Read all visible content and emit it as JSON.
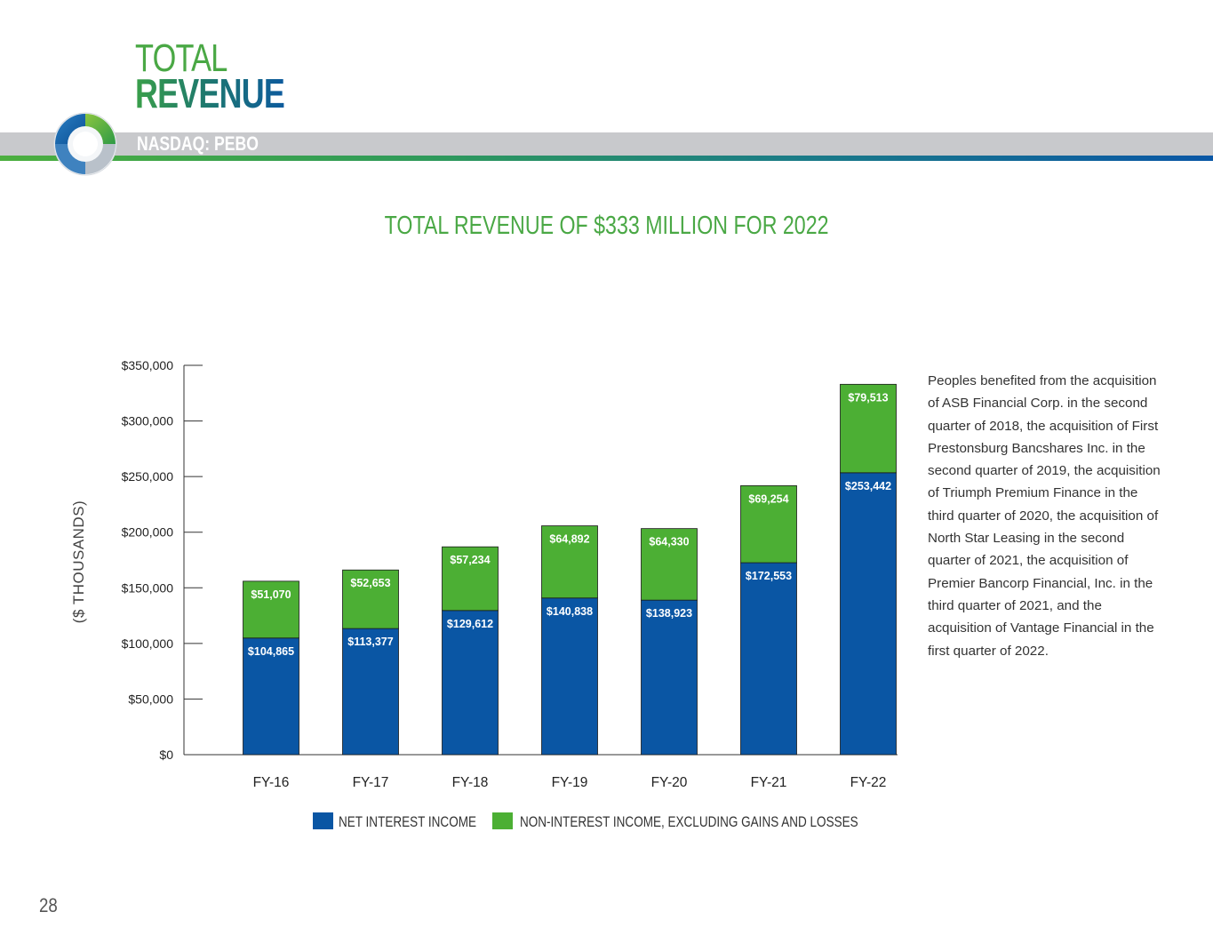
{
  "header": {
    "title_line1": "TOTAL",
    "title_line2": "REVENUE",
    "ticker": "NASDAQ: PEBO"
  },
  "page_number": "28",
  "side_text": "Peoples benefited from the acquisition of ASB Financial Corp. in the second quarter of 2018, the acquisition of First Prestonsburg Bancshares Inc. in the second quarter of 2019, the acquisition of Triumph Premium Finance in the third quarter of 2020, the acquisition of North Star Leasing in the second quarter of 2021, the acquisition of Premier Bancorp Financial, Inc. in the third quarter of 2021, and the acquisition of Vantage Financial in the first quarter of 2022.",
  "colors": {
    "net_interest": "#0a56a4",
    "non_interest": "#4caf34",
    "title_green": "#4aa845"
  },
  "chart_data": {
    "type": "bar",
    "stacked": true,
    "title": "TOTAL REVENUE OF $333 MILLION FOR 2022",
    "ylabel": "($ THOUSANDS)",
    "xlabel": "",
    "categories": [
      "FY-16",
      "FY-17",
      "FY-18",
      "FY-19",
      "FY-20",
      "FY-21",
      "FY-22"
    ],
    "series": [
      {
        "name": "NET INTEREST INCOME",
        "values": [
          104865,
          113377,
          129612,
          140838,
          138923,
          172553,
          253442
        ],
        "labels": [
          "$104,865",
          "$113,377",
          "$129,612",
          "$140,838",
          "$138,923",
          "$172,553",
          "$253,442"
        ]
      },
      {
        "name": "NON-INTEREST INCOME, EXCLUDING GAINS AND LOSSES",
        "values": [
          51070,
          52653,
          57234,
          64892,
          64330,
          69254,
          79513
        ],
        "labels": [
          "$51,070",
          "$52,653",
          "$57,234",
          "$64,892",
          "$64,330",
          "$69,254",
          "$79,513"
        ]
      }
    ],
    "ylim": [
      0,
      350000
    ],
    "yticks": [
      0,
      50000,
      100000,
      150000,
      200000,
      250000,
      300000,
      350000
    ],
    "ytick_labels": [
      "$0",
      "$50,000",
      "$100,000",
      "$150,000",
      "$200,000",
      "$250,000",
      "$300,000",
      "$350,000"
    ],
    "grid": false,
    "legend_position": "bottom"
  }
}
